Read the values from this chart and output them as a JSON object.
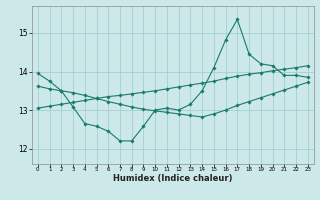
{
  "xlabel": "Humidex (Indice chaleur)",
  "bg_color": "#cce8e8",
  "grid_color": "#99cccc",
  "line_color": "#1a7a6e",
  "xlim": [
    -0.5,
    23.5
  ],
  "ylim": [
    11.6,
    15.7
  ],
  "xticks": [
    0,
    1,
    2,
    3,
    4,
    5,
    6,
    7,
    8,
    9,
    10,
    11,
    12,
    13,
    14,
    15,
    16,
    17,
    18,
    19,
    20,
    21,
    22,
    23
  ],
  "yticks": [
    12,
    13,
    14,
    15
  ],
  "line1_x": [
    0,
    1,
    2,
    3,
    4,
    5,
    6,
    7,
    8,
    9,
    10,
    11,
    12,
    13,
    14,
    15,
    16,
    17,
    18,
    19,
    20,
    21,
    22,
    23
  ],
  "line1_y": [
    13.95,
    13.75,
    13.5,
    13.08,
    12.65,
    12.58,
    12.45,
    12.2,
    12.2,
    12.58,
    13.0,
    13.05,
    13.0,
    13.15,
    13.5,
    14.1,
    14.82,
    15.35,
    14.45,
    14.2,
    14.15,
    13.9,
    13.9,
    13.85
  ],
  "line2_x": [
    0,
    1,
    2,
    3,
    4,
    5,
    6,
    7,
    8,
    9,
    10,
    11,
    12,
    13,
    14,
    15,
    16,
    17,
    18,
    19,
    20,
    21,
    22,
    23
  ],
  "line2_y": [
    13.05,
    13.1,
    13.15,
    13.2,
    13.25,
    13.3,
    13.35,
    13.38,
    13.42,
    13.46,
    13.5,
    13.55,
    13.6,
    13.65,
    13.7,
    13.75,
    13.82,
    13.88,
    13.93,
    13.97,
    14.02,
    14.06,
    14.1,
    14.15
  ],
  "line3_x": [
    0,
    1,
    2,
    3,
    4,
    5,
    6,
    7,
    8,
    9,
    10,
    11,
    12,
    13,
    14,
    15,
    16,
    17,
    18,
    19,
    20,
    21,
    22,
    23
  ],
  "line3_y": [
    13.62,
    13.55,
    13.5,
    13.45,
    13.38,
    13.3,
    13.22,
    13.15,
    13.08,
    13.02,
    12.98,
    12.94,
    12.9,
    12.86,
    12.82,
    12.9,
    13.0,
    13.12,
    13.22,
    13.32,
    13.42,
    13.52,
    13.62,
    13.72
  ]
}
